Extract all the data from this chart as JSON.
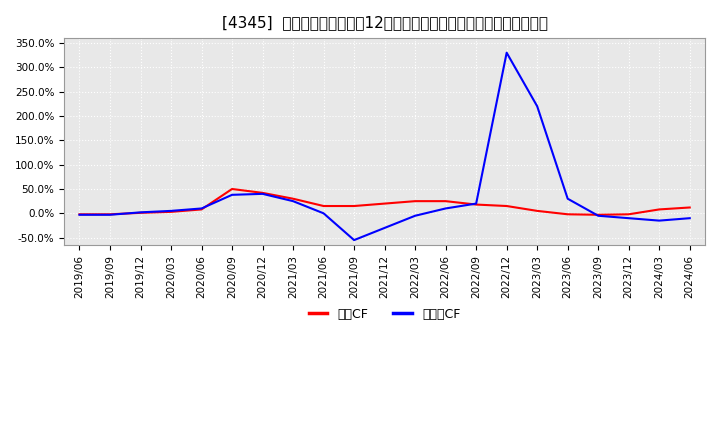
{
  "title": "[4345]  キャッシュフローの12か月移動合計の対前年同期増減率の推移",
  "legend_labels": [
    "営業CF",
    "フリーCF"
  ],
  "line_colors": [
    "#ff0000",
    "#0000ff"
  ],
  "ylim": [
    -0.65,
    3.6
  ],
  "yticks": [
    -0.5,
    0.0,
    0.5,
    1.0,
    1.5,
    2.0,
    2.5,
    3.0,
    3.5
  ],
  "ytick_labels": [
    "-50.0%",
    "0.0%",
    "50.0%",
    "100.0%",
    "150.0%",
    "200.0%",
    "250.0%",
    "300.0%",
    "350.0%"
  ],
  "dates": [
    "2019/06",
    "2019/09",
    "2019/12",
    "2020/03",
    "2020/06",
    "2020/09",
    "2020/12",
    "2021/03",
    "2021/06",
    "2021/09",
    "2021/12",
    "2022/03",
    "2022/06",
    "2022/09",
    "2022/12",
    "2023/03",
    "2023/06",
    "2023/09",
    "2023/12",
    "2024/03",
    "2024/06"
  ],
  "eigyo_cf": [
    -0.02,
    -0.02,
    0.01,
    0.03,
    0.08,
    0.5,
    0.42,
    0.3,
    0.15,
    0.15,
    0.2,
    0.25,
    0.25,
    0.18,
    0.15,
    0.05,
    -0.02,
    -0.03,
    -0.02,
    0.08,
    0.12
  ],
  "free_cf": [
    -0.03,
    -0.03,
    0.02,
    0.05,
    0.1,
    0.38,
    0.4,
    0.25,
    0.0,
    -0.55,
    -0.3,
    -0.05,
    0.1,
    0.2,
    3.3,
    2.2,
    0.3,
    -0.05,
    -0.1,
    -0.15,
    -0.1
  ],
  "background_color": "#ffffff",
  "plot_bg_color": "#e8e8e8",
  "grid_color": "#ffffff",
  "title_fontsize": 11,
  "tick_fontsize": 7.5,
  "legend_fontsize": 9
}
